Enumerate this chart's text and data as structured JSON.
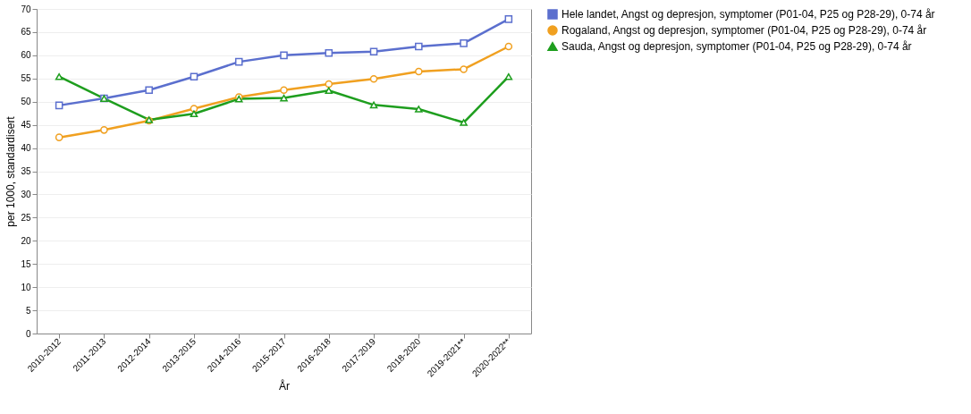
{
  "chart_data": {
    "type": "line",
    "xlabel": "År",
    "ylabel": "per 1000, standardisert",
    "categories": [
      "2010-2012",
      "2011-2013",
      "2012-2014",
      "2013-2015",
      "2014-2016",
      "2015-2017",
      "2016-2018",
      "2017-2019",
      "2018-2020",
      "2019-2021**",
      "2020-2022**"
    ],
    "series": [
      {
        "name": "Hele landet, Angst og depresjon, symptomer (P01-04, P25 og P28-29), 0-74 år",
        "color": "#5b6fce",
        "marker": "square",
        "values": [
          49.2,
          50.7,
          52.5,
          55.4,
          58.6,
          60.0,
          60.5,
          60.8,
          61.9,
          62.6,
          67.8
        ]
      },
      {
        "name": "Rogaland, Angst og depresjon, symptomer (P01-04, P25 og P28-29), 0-74 år",
        "color": "#f0a020",
        "marker": "circle",
        "values": [
          42.3,
          43.9,
          45.9,
          48.5,
          51.0,
          52.5,
          53.8,
          54.9,
          56.5,
          57.0,
          61.9
        ]
      },
      {
        "name": "Sauda, Angst og depresjon, symptomer (P01-04, P25 og P28-29), 0-74 år",
        "color": "#1e9e1e",
        "marker": "triangle",
        "values": [
          55.4,
          50.7,
          46.1,
          47.4,
          50.6,
          50.8,
          52.4,
          49.3,
          48.4,
          45.5,
          55.4
        ]
      }
    ],
    "ylim": [
      0,
      70
    ],
    "yticks": [
      0,
      5,
      10,
      15,
      20,
      25,
      30,
      35,
      40,
      45,
      50,
      55,
      60,
      65,
      70
    ],
    "grid": "y",
    "legend": "right",
    "line_style": "solid"
  }
}
